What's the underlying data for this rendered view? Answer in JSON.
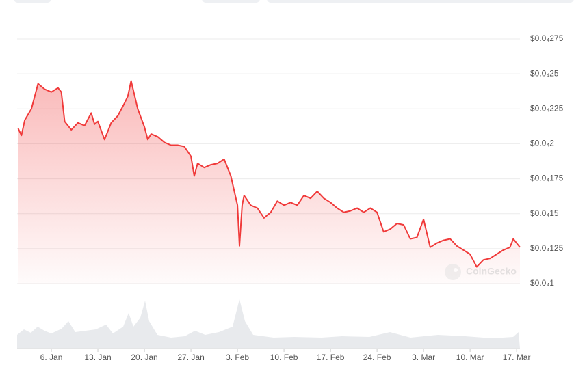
{
  "chart_data": {
    "type": "line",
    "watermark": "CoinGecko",
    "x": [
      1,
      1.5,
      2,
      3,
      4,
      5,
      6,
      7,
      7.5,
      8,
      9,
      10,
      11,
      12,
      12.5,
      13,
      14,
      15,
      16,
      17,
      17.5,
      18,
      19,
      20,
      20.5,
      21,
      22,
      23,
      24,
      25,
      26,
      27,
      27.5,
      28,
      29,
      30,
      31,
      32,
      33,
      34,
      34.3,
      34.7,
      35,
      36,
      37,
      38,
      39,
      40,
      41,
      42,
      43,
      44,
      45,
      46,
      47,
      48,
      49,
      50,
      51,
      52,
      53,
      54,
      55,
      56,
      57,
      58,
      59,
      60,
      61,
      62,
      63,
      64,
      65,
      66,
      67,
      68,
      69,
      70,
      71,
      72,
      73,
      74,
      75,
      75.5,
      76,
      76.5
    ],
    "series": [
      {
        "color": "#f03a3a",
        "values": [
          2.11e-05,
          2.06e-05,
          2.17e-05,
          2.25e-05,
          2.43e-05,
          2.39e-05,
          2.37e-05,
          2.4e-05,
          2.37e-05,
          2.16e-05,
          2.1e-05,
          2.15e-05,
          2.13e-05,
          2.22e-05,
          2.14e-05,
          2.16e-05,
          2.03e-05,
          2.15e-05,
          2.2e-05,
          2.29e-05,
          2.34e-05,
          2.45e-05,
          2.25e-05,
          2.12e-05,
          2.03e-05,
          2.07e-05,
          2.05e-05,
          2.01e-05,
          1.99e-05,
          1.99e-05,
          1.98e-05,
          1.91e-05,
          1.77e-05,
          1.86e-05,
          1.83e-05,
          1.85e-05,
          1.86e-05,
          1.89e-05,
          1.77e-05,
          1.56e-05,
          1.27e-05,
          1.56e-05,
          1.63e-05,
          1.56e-05,
          1.54e-05,
          1.47e-05,
          1.51e-05,
          1.59e-05,
          1.56e-05,
          1.58e-05,
          1.56e-05,
          1.63e-05,
          1.61e-05,
          1.66e-05,
          1.61e-05,
          1.58e-05,
          1.54e-05,
          1.51e-05,
          1.52e-05,
          1.54e-05,
          1.51e-05,
          1.54e-05,
          1.51e-05,
          1.37e-05,
          1.39e-05,
          1.43e-05,
          1.42e-05,
          1.32e-05,
          1.33e-05,
          1.46e-05,
          1.26e-05,
          1.29e-05,
          1.31e-05,
          1.32e-05,
          1.27e-05,
          1.24e-05,
          1.21e-05,
          1.12e-05,
          1.17e-05,
          1.18e-05,
          1.21e-05,
          1.24e-05,
          1.26e-05,
          1.32e-05,
          1.29e-05,
          1.26e-05
        ]
      }
    ],
    "xlim": [
      0.85,
      76.5
    ],
    "xticks": [
      {
        "value": 6,
        "label": "6. Jan"
      },
      {
        "value": 13,
        "label": "13. Jan"
      },
      {
        "value": 20,
        "label": "20. Jan"
      },
      {
        "value": 27,
        "label": "27. Jan"
      },
      {
        "value": 34,
        "label": "3. Feb"
      },
      {
        "value": 41,
        "label": "10. Feb"
      },
      {
        "value": 48,
        "label": "17. Feb"
      },
      {
        "value": 55,
        "label": "24. Feb"
      },
      {
        "value": 62,
        "label": "3. Mar"
      },
      {
        "value": 69,
        "label": "10. Mar"
      },
      {
        "value": 76,
        "label": "17. Mar"
      }
    ],
    "ylim": [
      1e-05,
      2.75e-05
    ],
    "yticks": [
      {
        "value": 1e-05,
        "label": "$0.0₄1"
      },
      {
        "value": 1.25e-05,
        "label": "$0.0₄125"
      },
      {
        "value": 1.5e-05,
        "label": "$0.0₄15"
      },
      {
        "value": 1.75e-05,
        "label": "$0.0₄175"
      },
      {
        "value": 2e-05,
        "label": "$0.0₄2"
      },
      {
        "value": 2.25e-05,
        "label": "$0.0₄225"
      },
      {
        "value": 2.5e-05,
        "label": "$0.0₄25"
      },
      {
        "value": 2.75e-05,
        "label": "$0.0₄275"
      }
    ],
    "grid": true
  }
}
